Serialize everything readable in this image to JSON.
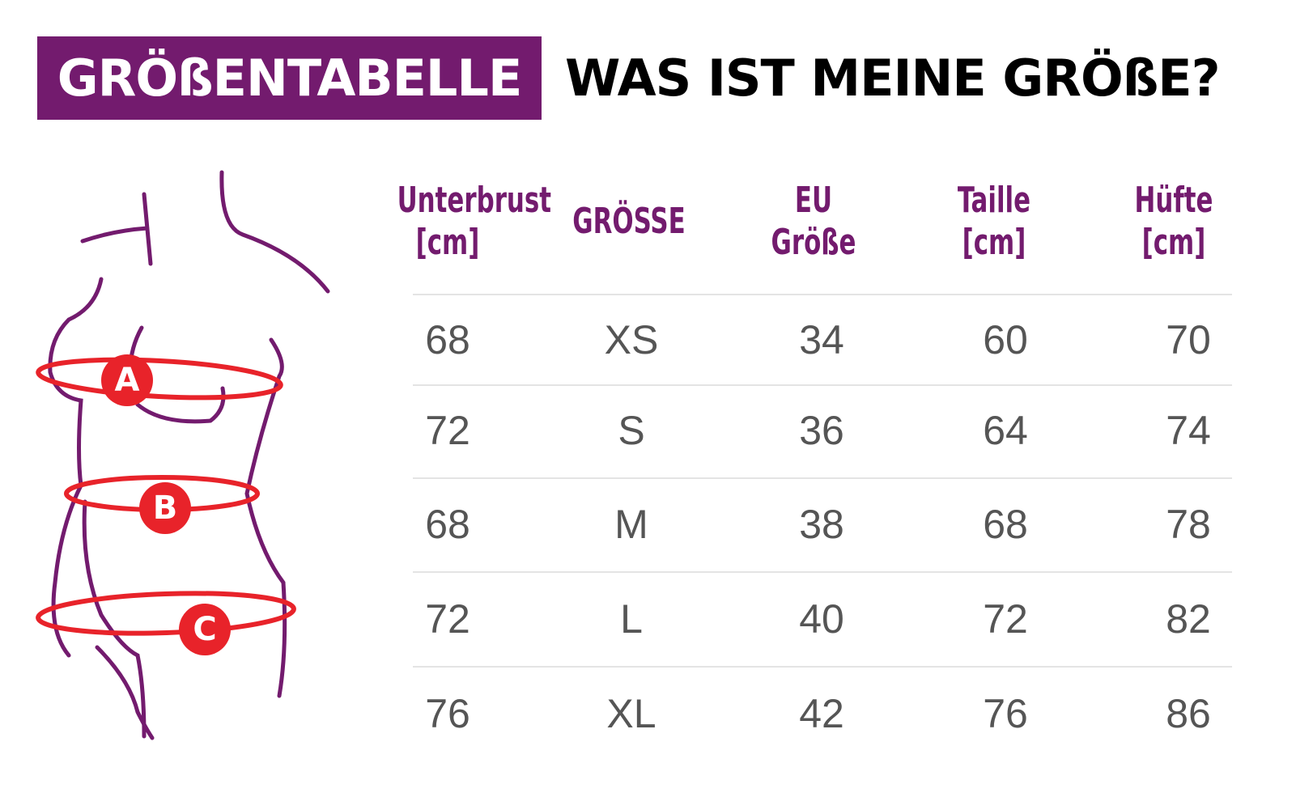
{
  "header": {
    "badge": "GRÖßENTABELLE",
    "title": "WAS IST MEINE GRÖßE?"
  },
  "figure": {
    "labels": [
      "A",
      "B",
      "C"
    ]
  },
  "table": {
    "columns": [
      "Unterbrust [cm]",
      "GRÖSSE",
      "EU Größe",
      "Taille [cm]",
      "Hüfte [cm]"
    ],
    "rows": [
      [
        68,
        "XS",
        34,
        60,
        70
      ],
      [
        72,
        "S",
        36,
        64,
        74
      ],
      [
        68,
        "M",
        38,
        68,
        78
      ],
      [
        72,
        "L",
        40,
        72,
        82
      ],
      [
        76,
        "XL",
        42,
        76,
        86
      ]
    ]
  }
}
